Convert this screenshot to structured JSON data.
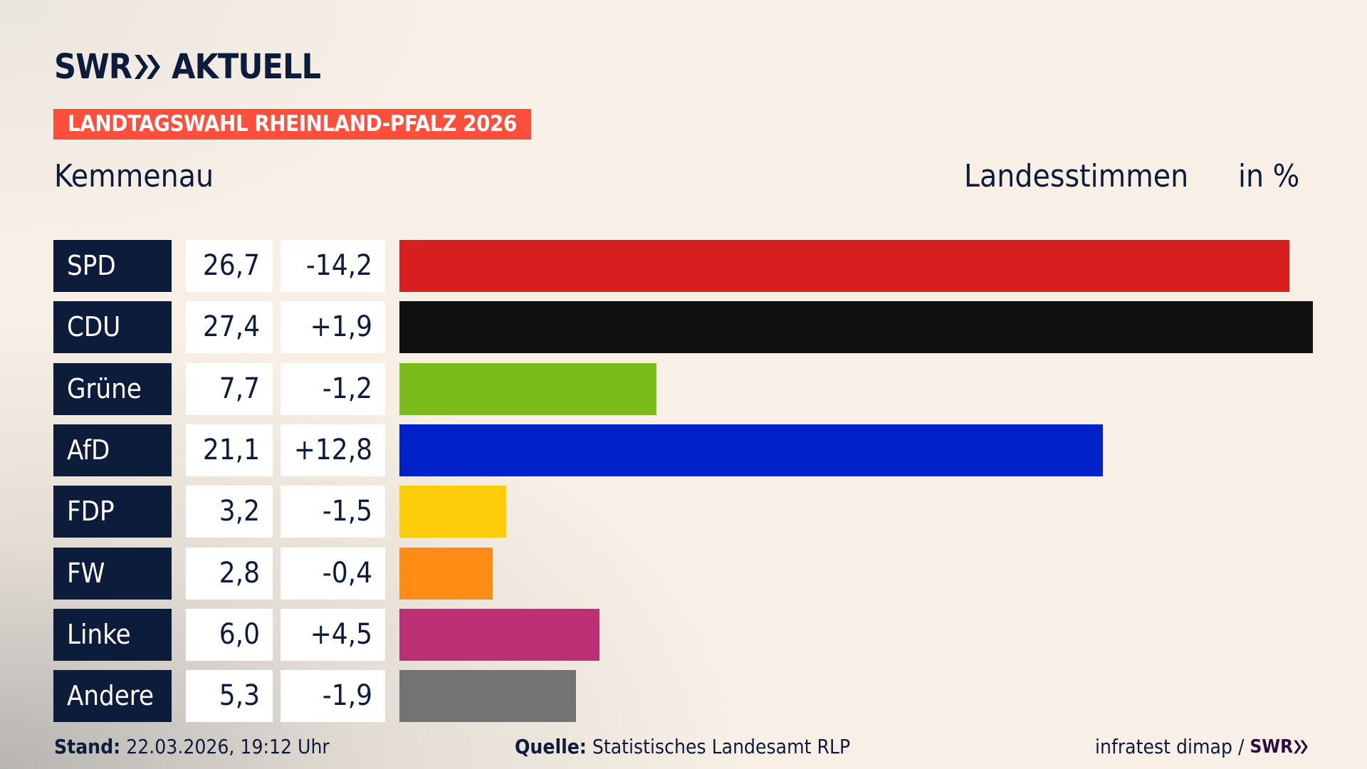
{
  "header": {
    "logo_text": "SWR",
    "logo_suffix": "AKTUELL",
    "banner": "LANDTAGSWAHL RHEINLAND-PFALZ 2026",
    "region": "Kemmenau",
    "measure": "Landesstimmen",
    "unit": "in %"
  },
  "colors": {
    "navy": "#0c1c3a",
    "banner": "#ff4e3c"
  },
  "chart_data": {
    "type": "bar",
    "orientation": "horizontal",
    "categories": [
      "SPD",
      "CDU",
      "Grüne",
      "AfD",
      "FDP",
      "FW",
      "Linke",
      "Andere"
    ],
    "values": [
      26.7,
      27.4,
      7.7,
      21.1,
      3.2,
      2.8,
      6.0,
      5.3
    ],
    "value_labels": [
      "26,7",
      "27,4",
      "7,7",
      "21,1",
      "3,2",
      "2,8",
      "6,0",
      "5,3"
    ],
    "changes": [
      -14.2,
      1.9,
      -1.2,
      12.8,
      -1.5,
      -0.4,
      4.5,
      -1.9
    ],
    "change_labels": [
      "-14,2",
      "+1,9",
      "-1,2",
      "+12,8",
      "-1,5",
      "-0,4",
      "+4,5",
      "-1,9"
    ],
    "colors": [
      "#d81f1f",
      "#111111",
      "#79bc1b",
      "#0021c8",
      "#ffcc0a",
      "#ff8c14",
      "#bc3173",
      "#737373"
    ],
    "grid": false
  },
  "footer": {
    "stand_label": "Stand:",
    "stand_value": "22.03.2026, 19:12 Uhr",
    "source_label": "Quelle:",
    "source_value": "Statistisches Landesamt RLP",
    "credit": "infratest dimap /",
    "credit_logo": "SWR"
  }
}
